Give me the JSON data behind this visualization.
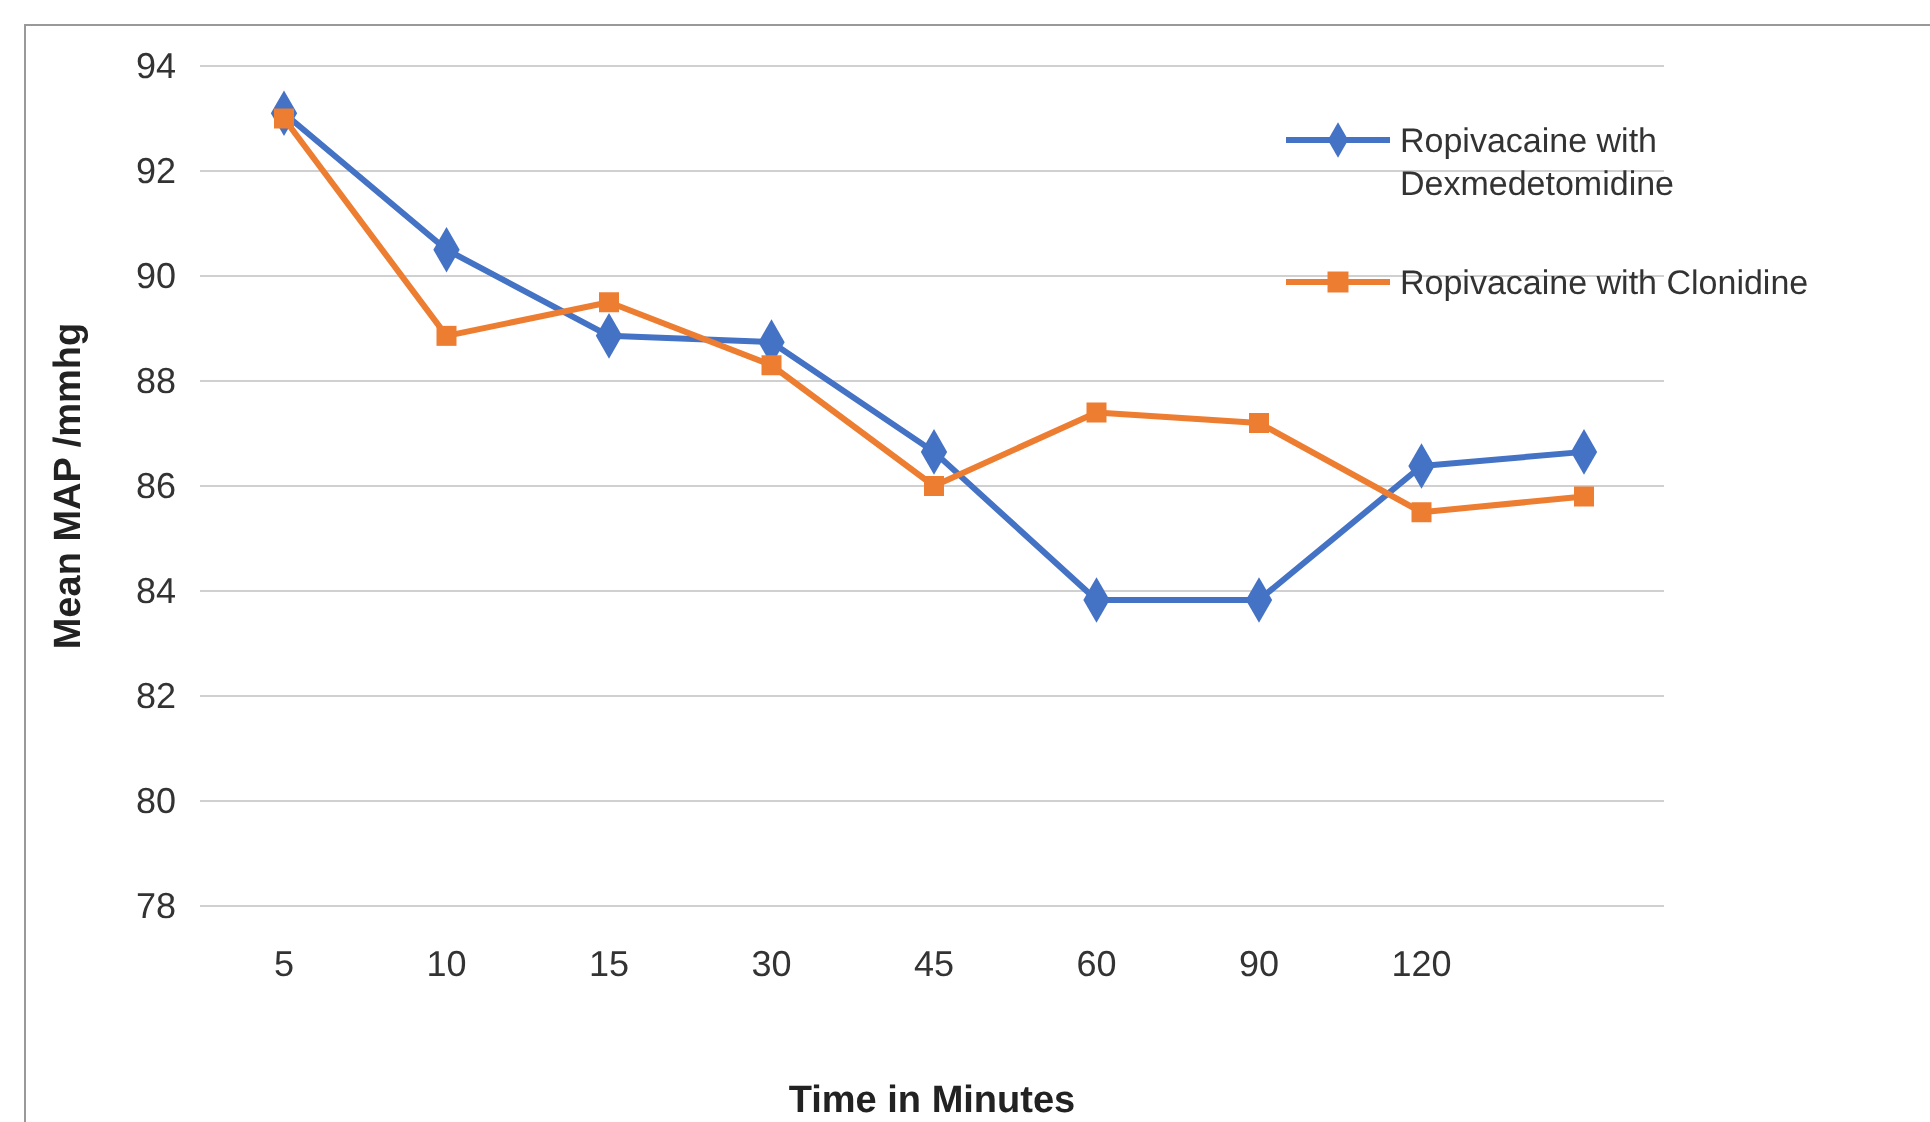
{
  "chart_data": {
    "type": "line",
    "xlabel": "Time in Minutes",
    "ylabel": "Mean MAP /mmhg",
    "categories": [
      "5",
      "10",
      "15",
      "30",
      "45",
      "60",
      "90",
      "120",
      null
    ],
    "series": [
      {
        "name": "Ropivacaine with Dexmedetomidine",
        "color": "#4472c4",
        "marker": "diamond",
        "values": [
          93.1,
          90.5,
          88.86,
          88.74,
          86.65,
          83.83,
          83.83,
          86.38,
          86.65
        ]
      },
      {
        "name": "Ropivacaine with Clonidine",
        "color": "#ed7d31",
        "marker": "square",
        "values": [
          93.0,
          88.86,
          89.5,
          88.3,
          86.0,
          87.4,
          87.2,
          85.5,
          85.8
        ]
      }
    ],
    "ylim": [
      78,
      94
    ],
    "yticks": [
      78,
      80,
      82,
      84,
      86,
      88,
      90,
      92,
      94
    ],
    "grid": "y",
    "legend": "top right",
    "line_style": "solid"
  }
}
